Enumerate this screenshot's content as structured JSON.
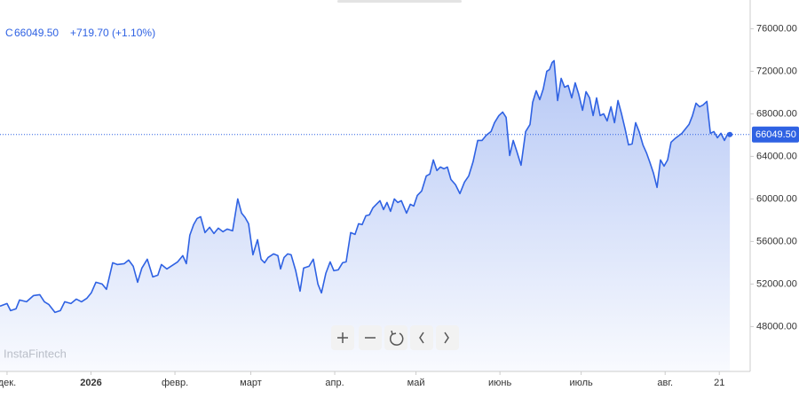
{
  "chart_data": {
    "type": "line",
    "quote": {
      "symbol": "C",
      "last": "66049.50",
      "change": "+719.70 (+1.10%)"
    },
    "watermark": "InstaFintech",
    "x": [
      -2.6,
      0,
      1.3,
      3.3,
      4.6,
      7.2,
      9.8,
      12.1,
      13.8,
      15.4,
      17.7,
      19.7,
      21.3,
      23.6,
      25.6,
      27.5,
      29.5,
      31.1,
      32.8,
      35.1,
      36.7,
      39.0,
      40.7,
      43.3,
      44.9,
      46.6,
      48.2,
      49.8,
      51.8,
      53.8,
      55.7,
      57.0,
      59.0,
      61.0,
      63.0,
      64.9,
      66.2,
      67.5,
      68.9,
      70.2,
      71.5,
      73.1,
      74.8,
      76.4,
      78.0,
      79.7,
      81.3,
      83.3,
      85.2,
      86.6,
      87.9,
      89.2,
      90.8,
      92.5,
      93.8,
      95.1,
      96.4,
      98.4,
      100.0,
      101.0,
      102.3,
      103.6,
      104.9,
      106.6,
      108.2,
      109.5,
      111.5,
      113.1,
      114.8,
      116.1,
      117.7,
      119.3,
      120.7,
      122.3,
      123.9,
      125.2,
      126.9,
      128.5,
      129.8,
      131.1,
      132.5,
      133.8,
      135.1,
      136.4,
      137.7,
      139.0,
      140.3,
      141.6,
      143.0,
      144.3,
      145.6,
      147.5,
      148.9,
      150.2,
      151.5,
      153.1,
      154.8,
      156.1,
      157.4,
      158.7,
      160.0,
      161.3,
      162.6,
      163.9,
      165.6,
      167.2,
      168.9,
      170.5,
      172.1,
      173.8,
      175.4,
      177.0,
      178.7,
      180.0,
      181.6,
      183.0,
      184.3,
      185.6,
      186.9,
      188.2,
      189.8,
      191.5,
      193.1,
      194.1,
      195.4,
      196.7,
      198.0,
      199.3,
      200.3,
      201.3,
      202.0,
      203.3,
      204.6,
      205.9,
      207.2,
      208.5,
      209.8,
      211.1,
      212.5,
      213.8,
      215.1,
      216.4,
      217.7,
      219.0,
      220.3,
      221.6,
      223.0,
      224.3,
      225.6,
      226.9,
      228.2,
      229.5,
      230.8,
      232.1,
      233.4,
      234.8,
      236.1,
      237.4,
      238.7,
      240.0,
      241.3,
      242.6,
      243.9,
      245.2,
      246.6,
      247.9,
      249.2,
      250.5,
      251.8,
      253.1,
      254.4,
      255.7,
      257.0,
      258.4,
      259.7,
      261.0,
      262.3,
      263.6,
      264.9,
      266.2,
      266.9
    ],
    "series": [
      {
        "color": "#2f62e3",
        "values": [
          49920,
          50170,
          49500,
          49670,
          50500,
          50330,
          50920,
          51000,
          50330,
          50080,
          49330,
          49500,
          50330,
          50170,
          50580,
          50330,
          50670,
          51170,
          52170,
          52000,
          51500,
          54000,
          53830,
          53920,
          54250,
          53670,
          52170,
          53500,
          54330,
          52670,
          52830,
          53830,
          53420,
          53750,
          54080,
          54670,
          53920,
          56580,
          57580,
          58170,
          58330,
          56830,
          57330,
          56750,
          57250,
          56920,
          57170,
          57000,
          60000,
          58670,
          58250,
          57670,
          54750,
          56170,
          54330,
          54000,
          54500,
          54830,
          54670,
          53420,
          54500,
          54830,
          54750,
          53250,
          51330,
          53500,
          53670,
          54330,
          52000,
          51170,
          53000,
          54080,
          53250,
          53330,
          54000,
          54080,
          56830,
          56670,
          57670,
          57580,
          58420,
          58500,
          59170,
          59500,
          59830,
          59000,
          59670,
          58830,
          60000,
          59670,
          59830,
          58670,
          59500,
          59330,
          60330,
          60750,
          62170,
          62330,
          63670,
          62670,
          63000,
          62830,
          63000,
          61830,
          61330,
          60500,
          61580,
          62170,
          63500,
          65500,
          65500,
          66000,
          66330,
          67170,
          67830,
          68170,
          67670,
          64080,
          65500,
          64500,
          63170,
          66330,
          67000,
          69080,
          70170,
          69330,
          70330,
          72000,
          72170,
          72830,
          73000,
          69250,
          71330,
          70500,
          70670,
          69500,
          70920,
          69830,
          68330,
          70080,
          69500,
          67830,
          69500,
          67830,
          68000,
          67330,
          68670,
          67170,
          69250,
          68000,
          66580,
          65080,
          65170,
          67170,
          66330,
          65080,
          64330,
          63420,
          62420,
          61080,
          63670,
          63080,
          63670,
          65330,
          65670,
          65920,
          66170,
          66580,
          67000,
          67830,
          69000,
          68670,
          68830,
          69170,
          66170,
          66330,
          65750,
          66170,
          65500,
          66170,
          66049.5
        ]
      }
    ],
    "xlim": [
      -2.6,
      274.4
    ],
    "xticks": [
      {
        "value": 0,
        "label": "дек."
      },
      {
        "value": 31,
        "label": "2026"
      },
      {
        "value": 62,
        "label": "февр."
      },
      {
        "value": 90,
        "label": "март"
      },
      {
        "value": 121,
        "label": "апр."
      },
      {
        "value": 151,
        "label": "май"
      },
      {
        "value": 182,
        "label": "июнь"
      },
      {
        "value": 212,
        "label": "июль"
      },
      {
        "value": 243,
        "label": "авг."
      },
      {
        "value": 263,
        "label": "21"
      }
    ],
    "ylim": [
      43800,
      78700
    ],
    "yticks": [
      {
        "value": 48000,
        "label": "48000.00"
      },
      {
        "value": 52000,
        "label": "52000.00"
      },
      {
        "value": 56000,
        "label": "56000.00"
      },
      {
        "value": 60000,
        "label": "60000.00"
      },
      {
        "value": 64000,
        "label": "64000.00"
      },
      {
        "value": 68000,
        "label": "68000.00"
      },
      {
        "value": 72000,
        "label": "72000.00"
      },
      {
        "value": 76000,
        "label": "76000.00"
      }
    ],
    "grid": false
  }
}
